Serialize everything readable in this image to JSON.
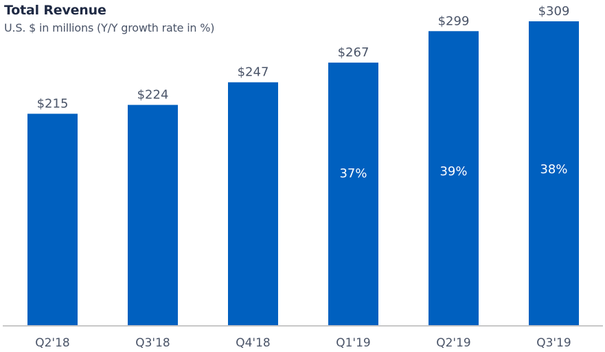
{
  "chart_data": {
    "type": "bar",
    "title": "Total Revenue",
    "subtitle": "U.S. $ in millions (Y/Y growth rate in %)",
    "xlabel": "",
    "ylabel": "",
    "ylim": [
      0,
      309
    ],
    "grid": false,
    "categories": [
      "Q2'18",
      "Q3'18",
      "Q4'18",
      "Q1'19",
      "Q2'19",
      "Q3'19"
    ],
    "values": [
      215,
      224,
      247,
      267,
      299,
      309
    ],
    "value_labels": [
      "$215",
      "$224",
      "$247",
      "$267",
      "$299",
      "$309"
    ],
    "growth_labels": [
      "",
      "",
      "",
      "37%",
      "39%",
      "38%"
    ],
    "bar_color": "#0060BF",
    "text_color": "#4A5468",
    "title_color": "#1F2A44",
    "axis_color": "#C8C8C8"
  }
}
